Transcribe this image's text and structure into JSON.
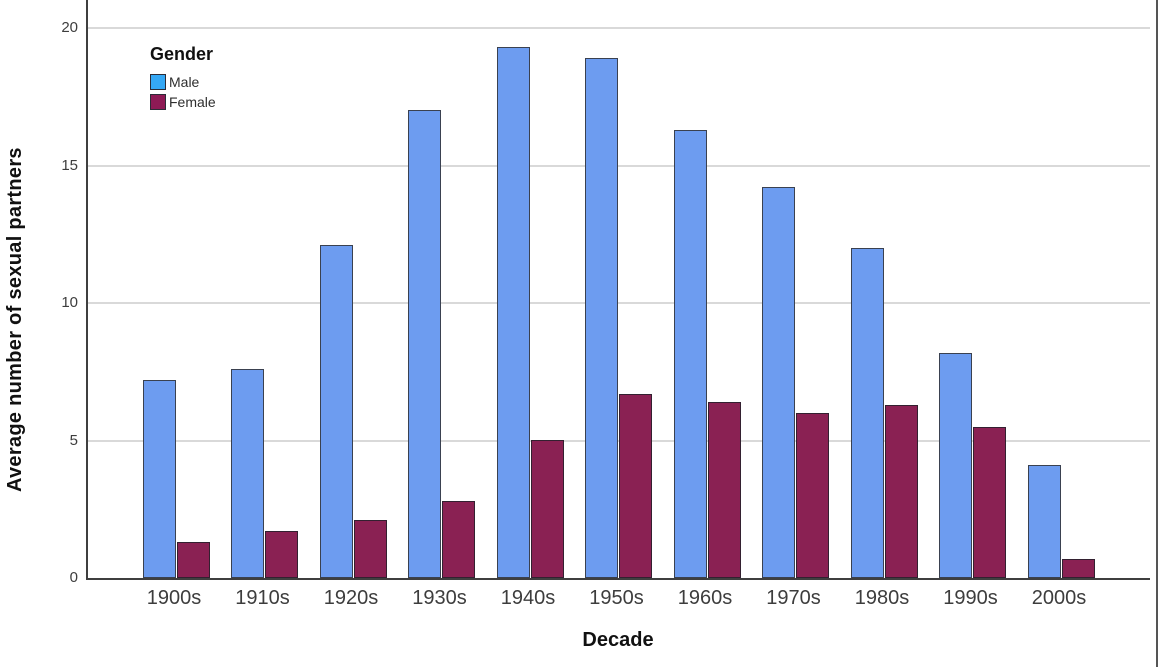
{
  "chart_data": {
    "type": "bar",
    "title": "",
    "categories": [
      "1900s",
      "1910s",
      "1920s",
      "1930s",
      "1940s",
      "1950s",
      "1960s",
      "1970s",
      "1980s",
      "1990s",
      "2000s"
    ],
    "series": [
      {
        "name": "Male",
        "values": [
          7.2,
          7.6,
          12.1,
          17.0,
          19.3,
          18.9,
          16.3,
          14.2,
          12.0,
          8.2,
          4.1
        ],
        "fill": "#6d9cf0",
        "border": "#3a4150",
        "legend_swatch": "#35a8f5"
      },
      {
        "name": "Female",
        "values": [
          1.3,
          1.7,
          2.1,
          2.8,
          5.0,
          6.7,
          6.4,
          6.0,
          6.3,
          5.5,
          0.7
        ],
        "fill": "#8a2153",
        "border": "#332030",
        "legend_swatch": "#8e1a55"
      }
    ],
    "xlabel": "Decade",
    "ylabel": "Average number of sexual partners",
    "ylim": [
      0,
      20
    ],
    "yticks": [
      0,
      5,
      10,
      15,
      20
    ],
    "grid": true,
    "legend_title": "Gender",
    "legend_position": "upper-left"
  },
  "colors": {
    "background": "#ffffff",
    "gridline": "#d9d9d9",
    "axis": "#3f3f3f",
    "tick_text": "#3d3d3d",
    "title_text": "#111111",
    "frame": "#555555"
  }
}
